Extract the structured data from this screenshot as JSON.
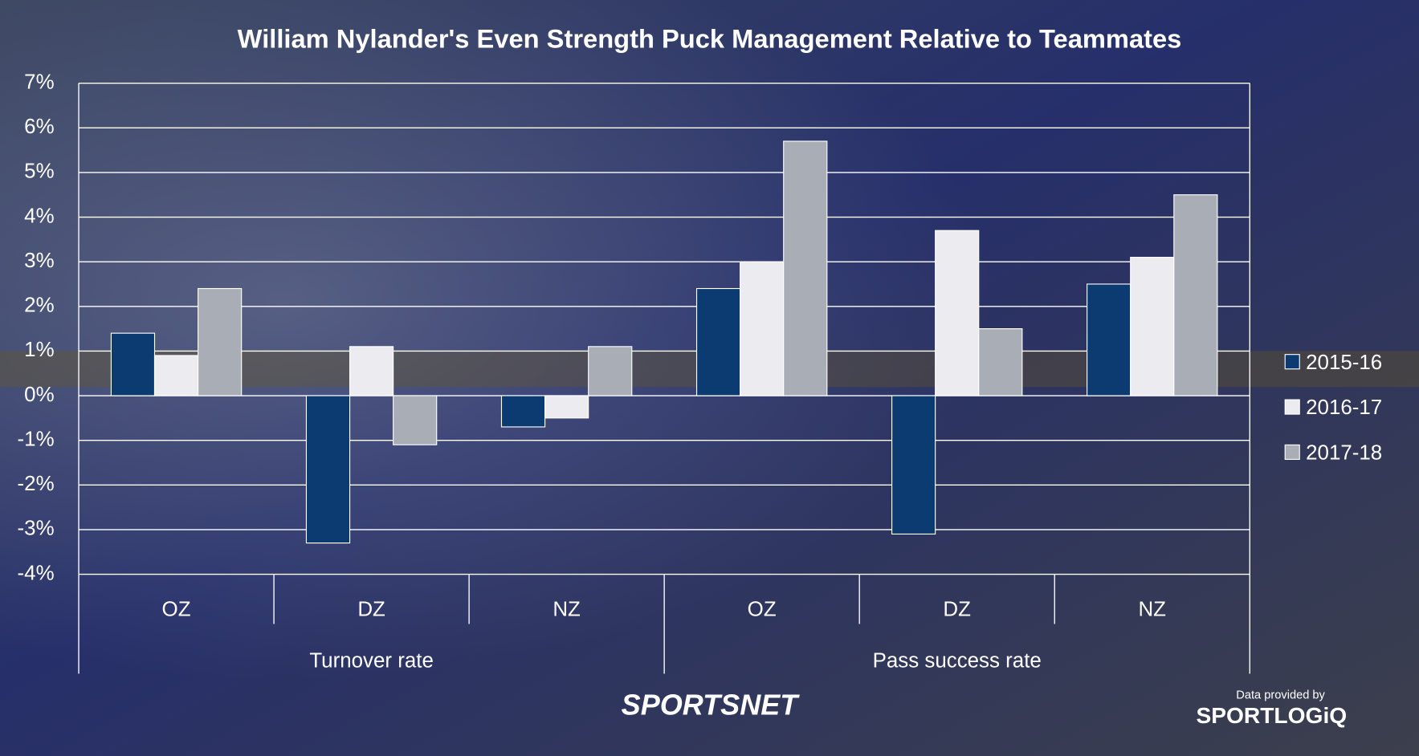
{
  "chart_data": {
    "type": "bar",
    "title": "William Nylander's Even Strength Puck Management Relative to Teammates",
    "categories": [
      "OZ",
      "DZ",
      "NZ",
      "OZ",
      "DZ",
      "NZ"
    ],
    "groups": [
      "Turnover rate",
      "Pass success rate"
    ],
    "series": [
      {
        "name": "2015-16",
        "color": "#0b3b70",
        "values": [
          1.4,
          -3.3,
          -0.7,
          2.4,
          -3.1,
          2.5
        ]
      },
      {
        "name": "2016-17",
        "color": "#ececf0",
        "values": [
          0.9,
          1.1,
          -0.5,
          3.0,
          3.7,
          3.1
        ]
      },
      {
        "name": "2017-18",
        "color": "#a9adb5",
        "values": [
          2.4,
          -1.1,
          1.1,
          5.7,
          1.5,
          4.5
        ]
      }
    ],
    "ylim": [
      -4,
      7
    ],
    "yticks": [
      {
        "value": -4,
        "label": "-4%"
      },
      {
        "value": -3,
        "label": "-3%"
      },
      {
        "value": -2,
        "label": "-2%"
      },
      {
        "value": -1,
        "label": "-1%"
      },
      {
        "value": 0,
        "label": "0%"
      },
      {
        "value": 1,
        "label": "1%"
      },
      {
        "value": 2,
        "label": "2%"
      },
      {
        "value": 3,
        "label": "3%"
      },
      {
        "value": 4,
        "label": "4%"
      },
      {
        "value": 5,
        "label": "5%"
      },
      {
        "value": 6,
        "label": "6%"
      },
      {
        "value": 7,
        "label": "7%"
      }
    ],
    "grid": true,
    "legend": "right"
  },
  "branding": {
    "logo": "SPORTSNET",
    "credit": "Data provided by",
    "provider": "SPORTLOGiQ"
  }
}
